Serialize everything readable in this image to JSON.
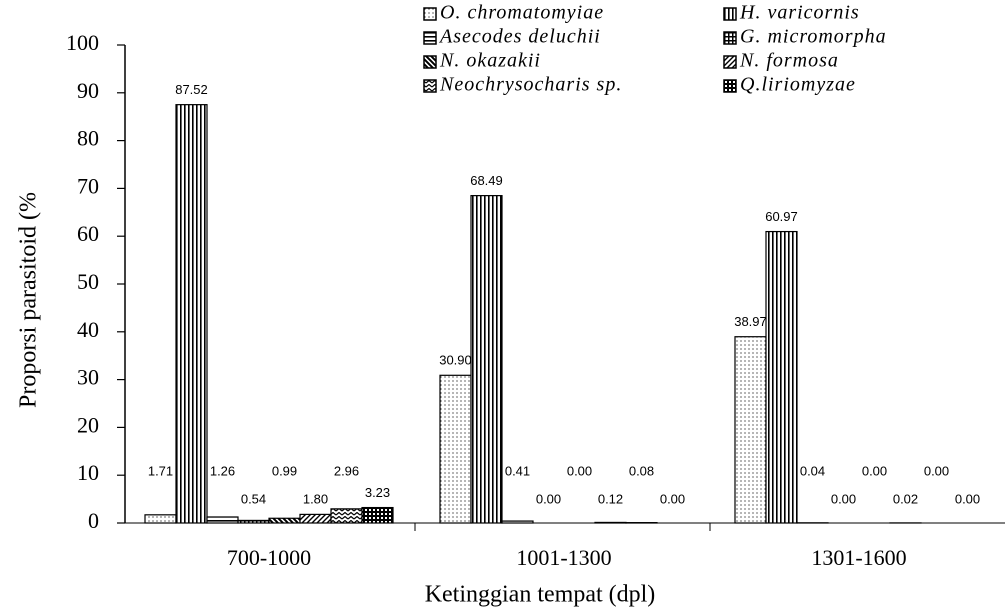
{
  "chart_data": {
    "type": "bar",
    "categories": [
      "700-1000",
      "1001-1300",
      "1301-1600"
    ],
    "xlabel": "Ketinggian tempat (dpl)",
    "ylabel": "Proporsi parasitoid (%",
    "ylim": [
      0,
      100
    ],
    "yticks": [
      0,
      10,
      20,
      30,
      40,
      50,
      60,
      70,
      80,
      90,
      100
    ],
    "grid": false,
    "legend": "top",
    "color": "#000000",
    "series": [
      {
        "name": "O. chromatomyiae",
        "pattern": "dots",
        "values": [
          1.71,
          30.9,
          38.97
        ],
        "value_labels": [
          "1.71",
          "30.90",
          "38.97"
        ]
      },
      {
        "name": "H. varicornis",
        "pattern": "vlines",
        "values": [
          87.52,
          68.49,
          60.97
        ],
        "value_labels": [
          "87.52",
          "68.49",
          "60.97"
        ]
      },
      {
        "name": "Asecodes deluchii",
        "pattern": "hlines",
        "values": [
          1.26,
          0.41,
          0.04
        ],
        "value_labels": [
          "1.26",
          "0.41",
          "0.04"
        ]
      },
      {
        "name": "G. micromorpha",
        "pattern": "grid",
        "values": [
          0.54,
          0,
          0
        ],
        "value_labels": [
          "0.54",
          "0.00",
          "0.00"
        ]
      },
      {
        "name": "N. okazakii",
        "pattern": "diagb",
        "values": [
          0.99,
          0,
          0
        ],
        "value_labels": [
          "0.99",
          "0.00",
          "0.00"
        ]
      },
      {
        "name": "N. formosa",
        "pattern": "diag",
        "values": [
          1.8,
          0.12,
          0.02
        ],
        "value_labels": [
          "1.80",
          "0.12",
          "0.02"
        ]
      },
      {
        "name": "Neochrysocharis sp.",
        "pattern": "wave",
        "values": [
          2.96,
          0.08,
          0
        ],
        "value_labels": [
          "2.96",
          "0.08",
          "0.00"
        ]
      },
      {
        "name": "Q.liriomyzae",
        "pattern": "check",
        "values": [
          3.23,
          0,
          0
        ],
        "value_labels": [
          "3.23",
          "0.00",
          "0.00"
        ]
      }
    ]
  }
}
